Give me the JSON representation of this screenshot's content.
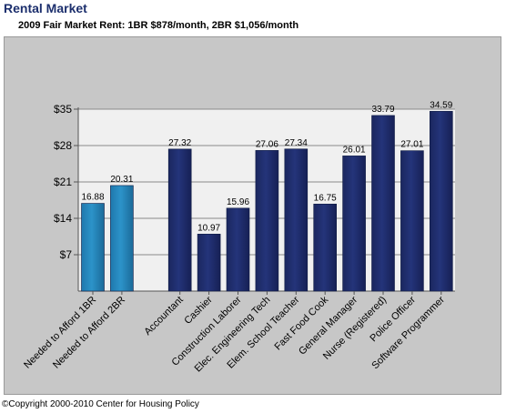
{
  "header": {
    "title": "Rental Market",
    "subtitle": "2009 Fair Market Rent:  1BR $878/month,  2BR $1,056/month"
  },
  "footer": {
    "copyright": "©Copyright 2000-2010 Center for Housing Policy"
  },
  "colors": {
    "needed": "#2c93c9",
    "occupation": "#24347a",
    "panel": "#c7c7c7",
    "plot": "#f0f0f0"
  },
  "chart_data": {
    "type": "bar",
    "title": "",
    "xlabel": "",
    "ylabel": "",
    "ylim": [
      0,
      35
    ],
    "yticks": [
      "$7",
      "$14",
      "$21",
      "$28",
      "$35"
    ],
    "grid": true,
    "legend": "none",
    "groups": [
      {
        "group": "needed",
        "categories": [
          "Needed to Afford 1BR",
          "Needed to Afford 2BR"
        ],
        "values": [
          16.88,
          20.31
        ],
        "labels": [
          "16.88",
          "20.31"
        ]
      },
      {
        "group": "occupation",
        "categories": [
          "Accountant",
          "Cashier",
          "Construction Laborer",
          "Elec. Engineering Tech",
          "Elem. School Teacher",
          "Fast Food Cook",
          "General Manager",
          "Nurse (Registered)",
          "Police Officer",
          "Software Programmer"
        ],
        "values": [
          27.32,
          10.97,
          15.96,
          27.06,
          27.34,
          16.75,
          26.01,
          33.79,
          27.01,
          34.59
        ],
        "labels": [
          "27.32",
          "10.97",
          "15.96",
          "27.06",
          "27.34",
          "16.75",
          "26.01",
          "33.79",
          "27.01",
          "34.59"
        ]
      }
    ]
  }
}
